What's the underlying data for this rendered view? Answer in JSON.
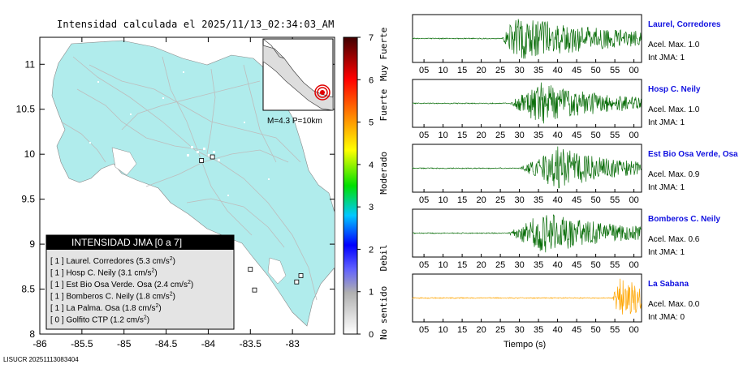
{
  "map": {
    "title": "Intensidad calculada el 2025/11/13_02:34:03_AM",
    "footer": "LISUCR 20251113083404",
    "inset_label": "M=4.3 P=10km",
    "legend": {
      "title": "INTENSIDAD JMA [0 a 7]",
      "rows": [
        {
          "level": "[ 1 ]",
          "name": "Laurel. Corredores",
          "value": "(5.3 cm/s",
          "sup": "2",
          "close": ")"
        },
        {
          "level": "[ 1 ]",
          "name": "Hosp C. Neily",
          "value": "(3.1 cm/s",
          "sup": "2",
          "close": ")"
        },
        {
          "level": "[ 1 ]",
          "name": "Est Bio Osa Verde. Osa",
          "value": "(2.4 cm/s",
          "sup": "2",
          "close": ")"
        },
        {
          "level": "[ 1 ]",
          "name": "Bomberos C. Neily",
          "value": "(1.8 cm/s",
          "sup": "2",
          "close": ")"
        },
        {
          "level": "[ 1 ]",
          "name": "La Palma. Osa",
          "value": "(1.8 cm/s",
          "sup": "2",
          "close": ")"
        },
        {
          "level": "[ 0 ]",
          "name": "Golfito CTP",
          "value": "(1.2 cm/s",
          "sup": "2",
          "close": ")"
        }
      ]
    },
    "colorbar": {
      "ticks": [
        "0",
        "1",
        "2",
        "3",
        "4",
        "5",
        "6",
        "7"
      ],
      "labels": [
        "No sentido",
        "Debil",
        "Moderado",
        "Fuerte",
        "Muy Fuerte"
      ],
      "colors": [
        "#ffffff",
        "#9d9d9d",
        "#3a3aff",
        "#00c8ff",
        "#00e000",
        "#ffff00",
        "#ff8000",
        "#ff0000",
        "#400000"
      ]
    },
    "colors": {
      "land": "#b0ecec",
      "roads": "#c8c8c8",
      "epicenter": "#e00000"
    }
  },
  "chart_data": [
    {
      "type": "scatter",
      "title": "",
      "xlabel": "",
      "ylabel": "",
      "xlim": [
        -86,
        -82.5
      ],
      "ylim": [
        8,
        11.3
      ],
      "xticks": [
        "-86",
        "-85.5",
        "-85",
        "-84.5",
        "-84",
        "-83.5",
        "-83"
      ],
      "yticks": [
        "8",
        "8.5",
        "9",
        "9.5",
        "10",
        "10.5",
        "11"
      ],
      "series": [
        {
          "name": "stations",
          "points": [
            [
              -82.95,
              8.58
            ],
            [
              -83.45,
              8.49
            ],
            [
              -83.5,
              8.72
            ],
            [
              -82.9,
              8.65
            ],
            [
              -83.95,
              9.97
            ],
            [
              -84.08,
              9.93
            ]
          ]
        }
      ]
    },
    {
      "type": "line",
      "xlabel": "Tiempo (s)",
      "xticks": [
        "05",
        "10",
        "15",
        "20",
        "25",
        "30",
        "35",
        "40",
        "45",
        "50",
        "55",
        "00"
      ],
      "traces": [
        {
          "station": "Laurel, Corredores",
          "acel": "Acel. Max. 1.0",
          "int": "Int JMA: 1",
          "onset_s": 25.5,
          "peak_s": 29,
          "amp": 0.95,
          "decay": 0.035,
          "noise": 0.02,
          "color": "#0a6e0a"
        },
        {
          "station": "Hosp C. Neily",
          "acel": "Acel. Max. 1.0",
          "int": "Int JMA: 1",
          "onset_s": 27.5,
          "peak_s": 35,
          "amp": 0.9,
          "decay": 0.05,
          "noise": 0.02,
          "color": "#0a6e0a"
        },
        {
          "station": "Est Bio Osa Verde, Osa",
          "acel": "Acel. Max. 0.9",
          "int": "Int JMA: 1",
          "onset_s": 30,
          "peak_s": 40,
          "amp": 0.9,
          "decay": 0.06,
          "noise": 0.02,
          "color": "#0a6e0a"
        },
        {
          "station": "Bomberos C. Neily",
          "acel": "Acel. Max. 0.6",
          "int": "Int JMA: 1",
          "onset_s": 27,
          "peak_s": 36,
          "amp": 0.85,
          "decay": 0.045,
          "noise": 0.02,
          "color": "#0a6e0a"
        },
        {
          "station": "La Sabana",
          "acel": "Acel. Max. 0.0",
          "int": "Int JMA: 0",
          "onset_s": 54.5,
          "peak_s": 56,
          "amp": 0.9,
          "decay": 0.09,
          "noise": 0.02,
          "color": "#ffa500"
        }
      ]
    }
  ]
}
